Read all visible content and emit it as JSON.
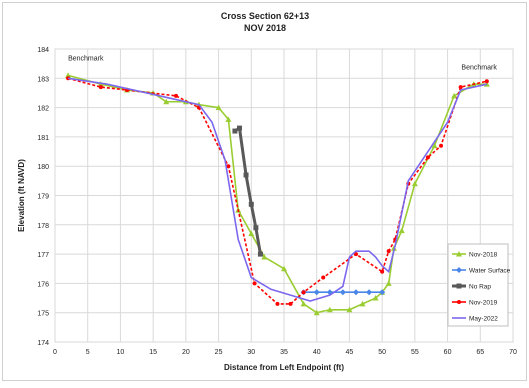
{
  "chart_data": {
    "type": "line",
    "title": "Cross Section 62+13",
    "subtitle": "NOV 2018",
    "xlabel": "Distance from Left Endpoint (ft)",
    "ylabel": "Elevation (ft NAVD)",
    "xlim": [
      0,
      70
    ],
    "ylim": [
      174,
      184
    ],
    "xticks": [
      0,
      5,
      10,
      15,
      20,
      25,
      30,
      35,
      40,
      45,
      50,
      55,
      60,
      65,
      70
    ],
    "yticks": [
      174,
      175,
      176,
      177,
      178,
      179,
      180,
      181,
      182,
      183,
      184
    ],
    "grid": true,
    "legend_position": "right",
    "annotations": [
      {
        "text": "Benchmark",
        "x": 2,
        "y": 183.6
      },
      {
        "text": "Benchmark",
        "x": 66,
        "y": 183.3
      }
    ],
    "series": [
      {
        "name": "Nov-2018",
        "color": "#9acd32",
        "marker": "triangle",
        "x": [
          2,
          7,
          11,
          15,
          17,
          20,
          22,
          25,
          26.5,
          28,
          30,
          32,
          35,
          38,
          40,
          42,
          45,
          47,
          49,
          50,
          51,
          51.8,
          53,
          55,
          58,
          61,
          64,
          66
        ],
        "y": [
          183.1,
          182.8,
          182.6,
          182.5,
          182.2,
          182.2,
          182.1,
          182.0,
          181.6,
          178.5,
          177.7,
          176.9,
          176.5,
          175.3,
          175.0,
          175.1,
          175.1,
          175.3,
          175.5,
          175.7,
          176.0,
          177.2,
          177.8,
          179.4,
          180.7,
          182.4,
          182.8,
          182.8
        ]
      },
      {
        "name": "Water Surface",
        "color": "#4a86e8",
        "marker": "diamond",
        "x": [
          38,
          40,
          42,
          44,
          46,
          48,
          50
        ],
        "y": [
          175.7,
          175.7,
          175.7,
          175.7,
          175.7,
          175.7,
          175.7
        ]
      },
      {
        "name": "No Rap",
        "color": "#595959",
        "marker": "square",
        "x": [
          27.5,
          28.2,
          29.2,
          30,
          30.7,
          31.4
        ],
        "y": [
          181.2,
          181.3,
          179.7,
          178.7,
          177.9,
          177.0
        ]
      },
      {
        "name": "Nov-2019",
        "color": "#ff0000",
        "marker": "circle",
        "x": [
          2,
          7,
          11,
          18.5,
          22,
          26.5,
          30.5,
          34,
          36,
          38,
          41,
          46,
          50,
          51,
          52,
          54,
          57,
          59,
          62,
          66
        ],
        "y": [
          183.0,
          182.7,
          182.6,
          182.4,
          182.0,
          180.0,
          176.0,
          175.3,
          175.3,
          175.7,
          176.2,
          177.0,
          176.4,
          177.1,
          177.5,
          179.4,
          180.3,
          180.7,
          182.7,
          182.9
        ]
      },
      {
        "name": "May-2022",
        "color": "#7b68ee",
        "marker": "none",
        "x": [
          2,
          8,
          12,
          18,
          22,
          24,
          26,
          28,
          30,
          33,
          36,
          39,
          42,
          44,
          45,
          46,
          48,
          49,
          50,
          51,
          52,
          54,
          57,
          60,
          62,
          64,
          66
        ],
        "y": [
          183.0,
          182.8,
          182.6,
          182.3,
          182.1,
          181.5,
          180.2,
          177.5,
          176.2,
          175.8,
          175.6,
          175.4,
          175.6,
          175.9,
          176.9,
          177.1,
          177.1,
          176.9,
          176.6,
          176.4,
          177.3,
          179.5,
          180.5,
          181.5,
          182.6,
          182.7,
          182.8
        ]
      }
    ]
  }
}
